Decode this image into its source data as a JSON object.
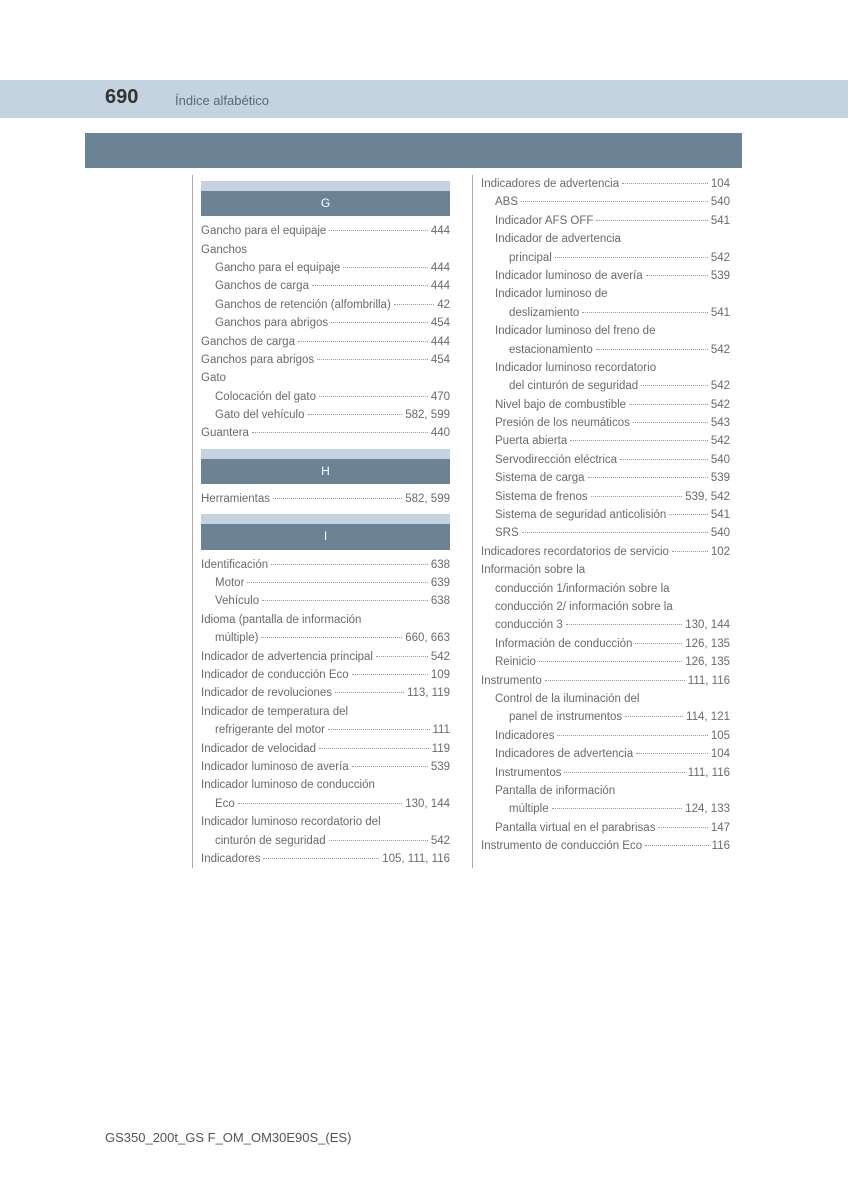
{
  "pageNumber": "690",
  "pageTitle": "Índice alfabético",
  "footer": "GS350_200t_GS F_OM_OM30E90S_(ES)",
  "sections": {
    "G": "G",
    "H": "H",
    "I": "I"
  },
  "left": [
    {
      "t": "header",
      "v": "G"
    },
    {
      "l": "Gancho para el equipaje",
      "p": "444"
    },
    {
      "l": "Ganchos",
      "p": ""
    },
    {
      "l": "Gancho para el equipaje",
      "p": "444",
      "s": 1
    },
    {
      "l": "Ganchos de carga",
      "p": "444",
      "s": 1
    },
    {
      "l": "Ganchos de retención (alfombrilla)",
      "p": "42",
      "s": 1
    },
    {
      "l": "Ganchos para abrigos",
      "p": "454",
      "s": 1
    },
    {
      "l": "Ganchos de carga",
      "p": "444"
    },
    {
      "l": "Ganchos para abrigos",
      "p": "454"
    },
    {
      "l": "Gato",
      "p": ""
    },
    {
      "l": "Colocación del gato",
      "p": "470",
      "s": 1
    },
    {
      "l": "Gato del vehículo",
      "p": "582, 599",
      "s": 1
    },
    {
      "l": "Guantera",
      "p": "440"
    },
    {
      "t": "header",
      "v": "H"
    },
    {
      "l": "Herramientas",
      "p": "582, 599"
    },
    {
      "t": "header",
      "v": "I"
    },
    {
      "l": "Identificación",
      "p": "638"
    },
    {
      "l": "Motor",
      "p": "639",
      "s": 1
    },
    {
      "l": "Vehículo",
      "p": "638",
      "s": 1
    },
    {
      "l": "Idioma (pantalla de información",
      "p": ""
    },
    {
      "l": "múltiple)",
      "p": "660, 663",
      "s": 1,
      "nd": 1
    },
    {
      "l": "Indicador de advertencia principal",
      "p": "542"
    },
    {
      "l": "Indicador de conducción Eco",
      "p": "109"
    },
    {
      "l": "Indicador de revoluciones",
      "p": "113, 119"
    },
    {
      "l": "Indicador de temperatura del",
      "p": ""
    },
    {
      "l": "refrigerante del motor",
      "p": "111",
      "s": 1,
      "nd": 1
    },
    {
      "l": "Indicador de velocidad",
      "p": "119"
    },
    {
      "l": "Indicador luminoso de avería",
      "p": "539"
    },
    {
      "l": "Indicador luminoso de conducción",
      "p": ""
    },
    {
      "l": "Eco",
      "p": "130, 144",
      "s": 1,
      "nd": 1
    },
    {
      "l": "Indicador luminoso recordatorio del",
      "p": ""
    },
    {
      "l": "cinturón de seguridad",
      "p": "542",
      "s": 1,
      "nd": 1
    },
    {
      "l": "Indicadores",
      "p": "105, 111, 116"
    }
  ],
  "right": [
    {
      "l": "Indicadores de advertencia",
      "p": "104"
    },
    {
      "l": "ABS",
      "p": "540",
      "s": 1
    },
    {
      "l": "Indicador AFS OFF",
      "p": "541",
      "s": 1
    },
    {
      "l": "Indicador de advertencia",
      "p": "",
      "s": 1
    },
    {
      "l": "principal",
      "p": "542",
      "s": 2,
      "nd": 1
    },
    {
      "l": "Indicador luminoso de avería",
      "p": "539",
      "s": 1
    },
    {
      "l": "Indicador luminoso de",
      "p": "",
      "s": 1
    },
    {
      "l": "deslizamiento",
      "p": "541",
      "s": 2,
      "nd": 1
    },
    {
      "l": "Indicador luminoso del freno de",
      "p": "",
      "s": 1
    },
    {
      "l": "estacionamiento",
      "p": "542",
      "s": 2,
      "nd": 1
    },
    {
      "l": "Indicador luminoso recordatorio",
      "p": "",
      "s": 1
    },
    {
      "l": "del cinturón de seguridad",
      "p": "542",
      "s": 2,
      "nd": 1
    },
    {
      "l": "Nivel bajo de combustible",
      "p": "542",
      "s": 1
    },
    {
      "l": "Presión de los neumáticos",
      "p": "543",
      "s": 1
    },
    {
      "l": "Puerta abierta",
      "p": "542",
      "s": 1
    },
    {
      "l": "Servodirección eléctrica",
      "p": "540",
      "s": 1
    },
    {
      "l": "Sistema de carga",
      "p": "539",
      "s": 1
    },
    {
      "l": "Sistema de frenos",
      "p": "539, 542",
      "s": 1
    },
    {
      "l": "Sistema de seguridad anticolisión",
      "p": "541",
      "s": 1
    },
    {
      "l": "SRS",
      "p": "540",
      "s": 1
    },
    {
      "l": "Indicadores recordatorios de servicio",
      "p": "102"
    },
    {
      "l": "Información sobre la",
      "p": ""
    },
    {
      "l": "conducción 1/información sobre la",
      "p": "",
      "s": 1,
      "nd": 1
    },
    {
      "l": "conducción 2/ información sobre la",
      "p": "",
      "s": 1,
      "nd": 1
    },
    {
      "l": "conducción 3",
      "p": "130, 144",
      "s": 1,
      "nd": 1
    },
    {
      "l": "Información de conducción",
      "p": "126, 135",
      "s": 1
    },
    {
      "l": "Reinicio",
      "p": "126, 135",
      "s": 1
    },
    {
      "l": "Instrumento",
      "p": "111, 116"
    },
    {
      "l": "Control de la iluminación del",
      "p": "",
      "s": 1
    },
    {
      "l": "panel de instrumentos",
      "p": "114, 121",
      "s": 2,
      "nd": 1
    },
    {
      "l": "Indicadores",
      "p": "105",
      "s": 1
    },
    {
      "l": "Indicadores de advertencia",
      "p": "104",
      "s": 1
    },
    {
      "l": "Instrumentos",
      "p": "111, 116",
      "s": 1
    },
    {
      "l": "Pantalla de información",
      "p": "",
      "s": 1
    },
    {
      "l": "múltiple",
      "p": "124, 133",
      "s": 2,
      "nd": 1
    },
    {
      "l": "Pantalla virtual en el parabrisas",
      "p": "147",
      "s": 1
    },
    {
      "l": "Instrumento de conducción Eco",
      "p": "116"
    }
  ]
}
